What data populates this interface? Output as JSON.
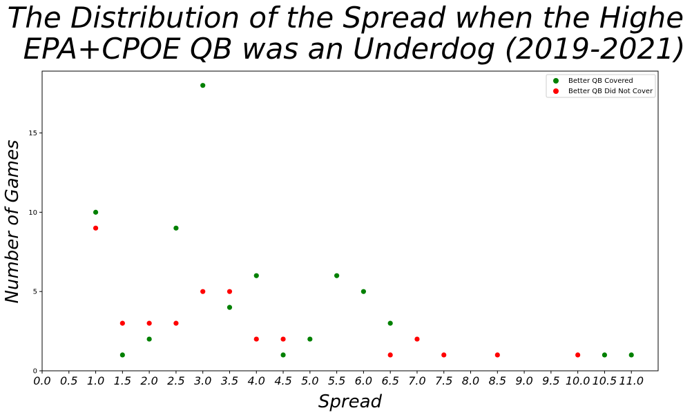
{
  "chart_data": {
    "type": "scatter",
    "title_line1": "The Distribution of the Spread when the Higher",
    "title_line2": "EPA+CPOE QB was an Underdog (2019-2021)",
    "xlabel": "Spread",
    "ylabel": "Number of Games",
    "xlim": [
      0,
      11.5
    ],
    "ylim": [
      0,
      18.9
    ],
    "xticks": [
      0.0,
      0.5,
      1.0,
      1.5,
      2.0,
      2.5,
      3.0,
      3.5,
      4.0,
      4.5,
      5.0,
      5.5,
      6.0,
      6.5,
      7.0,
      7.5,
      8.0,
      8.5,
      9.0,
      9.5,
      10.0,
      10.5,
      11.0
    ],
    "xtick_labels": [
      "0.0",
      "0.5",
      "1.0",
      "1.5",
      "2.0",
      "2.5",
      "3.0",
      "3.5",
      "4.0",
      "4.5",
      "5.0",
      "5.5",
      "6.0",
      "6.5",
      "7.0",
      "7.5",
      "8.0",
      "8.5",
      "9.0",
      "9.5",
      "10.0",
      "10.5",
      "11.0"
    ],
    "yticks": [
      0,
      5,
      10,
      15
    ],
    "ytick_labels": [
      "0",
      "5",
      "10",
      "15"
    ],
    "grid": false,
    "legend_position": "top-right",
    "series": [
      {
        "name": "Better QB Covered",
        "color": "#008000",
        "points": [
          [
            1.0,
            10
          ],
          [
            1.5,
            1
          ],
          [
            2.0,
            2
          ],
          [
            2.5,
            9
          ],
          [
            3.0,
            18
          ],
          [
            3.5,
            4
          ],
          [
            4.0,
            6
          ],
          [
            4.5,
            1
          ],
          [
            5.0,
            2
          ],
          [
            5.5,
            6
          ],
          [
            6.0,
            5
          ],
          [
            6.5,
            3
          ],
          [
            10.5,
            1
          ],
          [
            11.0,
            1
          ]
        ]
      },
      {
        "name": "Better QB Did Not Cover",
        "color": "#ff0000",
        "points": [
          [
            1.0,
            9
          ],
          [
            1.5,
            3
          ],
          [
            2.0,
            3
          ],
          [
            2.5,
            3
          ],
          [
            3.0,
            5
          ],
          [
            3.5,
            5
          ],
          [
            4.0,
            2
          ],
          [
            4.5,
            2
          ],
          [
            6.5,
            1
          ],
          [
            7.0,
            2
          ],
          [
            7.5,
            1
          ],
          [
            8.5,
            1
          ],
          [
            10.0,
            1
          ]
        ]
      }
    ]
  }
}
